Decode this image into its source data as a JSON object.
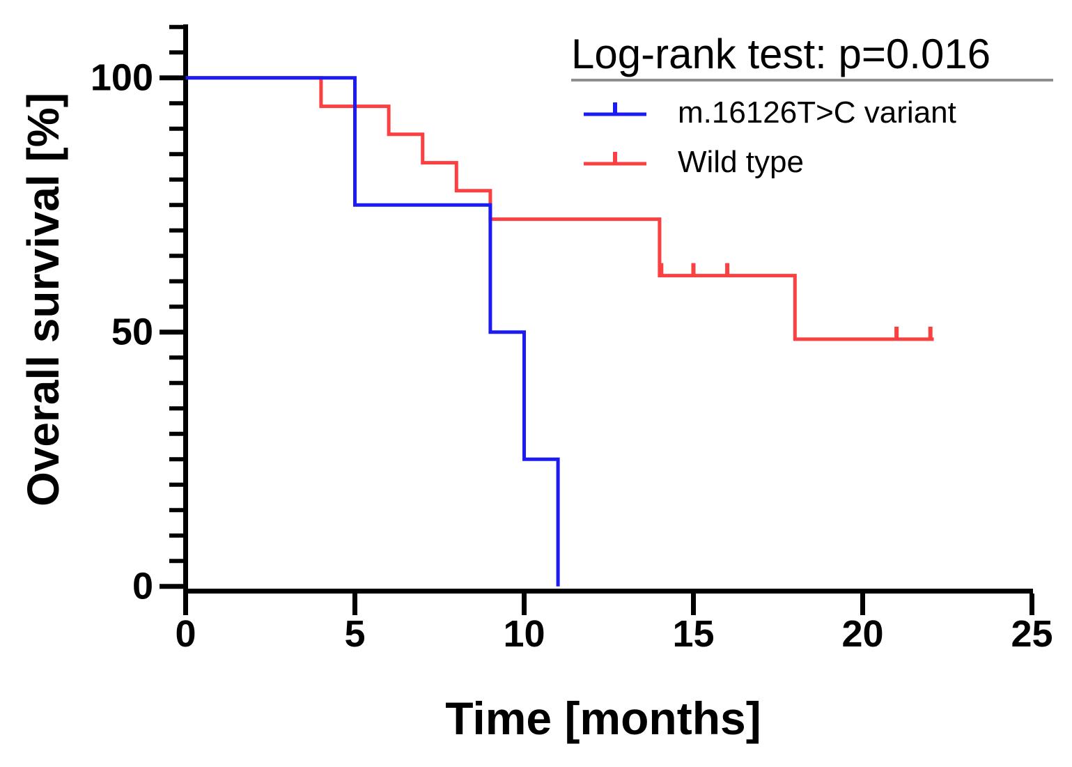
{
  "chart_data": {
    "type": "line",
    "subtype": "kaplan_meier_step_curve",
    "title": "Log-rank test: p=0.016",
    "xlabel": "Time [months]",
    "ylabel": "Overall survival [%]",
    "xlim": [
      0,
      25
    ],
    "ylim": [
      0,
      110
    ],
    "x_ticks": [
      0,
      5,
      10,
      15,
      20,
      25
    ],
    "y_major_ticks": [
      0,
      50,
      100
    ],
    "y_minor_tick_step": 5,
    "grid": "off",
    "legend_position": "top-right-inside",
    "axis_color": "#000000",
    "title_underline_color": "#8f8f8f",
    "series": [
      {
        "name": "m.16126T>C variant",
        "color": "#1b1bf2",
        "steps": [
          [
            0,
            100
          ],
          [
            5,
            100
          ],
          [
            5,
            75
          ],
          [
            9,
            75
          ],
          [
            9,
            50
          ],
          [
            10,
            50
          ],
          [
            10,
            25
          ],
          [
            11,
            25
          ],
          [
            11,
            0
          ]
        ],
        "censor_marks": []
      },
      {
        "name": "Wild type",
        "color": "#fa4040",
        "steps": [
          [
            0,
            100
          ],
          [
            4,
            100
          ],
          [
            4,
            94.4
          ],
          [
            6,
            94.4
          ],
          [
            6,
            88.9
          ],
          [
            7,
            88.9
          ],
          [
            7,
            83.3
          ],
          [
            8,
            83.3
          ],
          [
            8,
            77.8
          ],
          [
            9,
            77.8
          ],
          [
            9,
            72.2
          ],
          [
            14,
            72.2
          ],
          [
            14,
            61.1
          ],
          [
            18,
            61.1
          ],
          [
            18,
            48.6
          ],
          [
            22.1,
            48.6
          ]
        ],
        "censor_marks": [
          [
            14.05,
            61.1
          ],
          [
            15,
            61.1
          ],
          [
            16,
            61.1
          ],
          [
            21,
            48.6
          ],
          [
            22,
            48.6
          ]
        ]
      }
    ]
  }
}
